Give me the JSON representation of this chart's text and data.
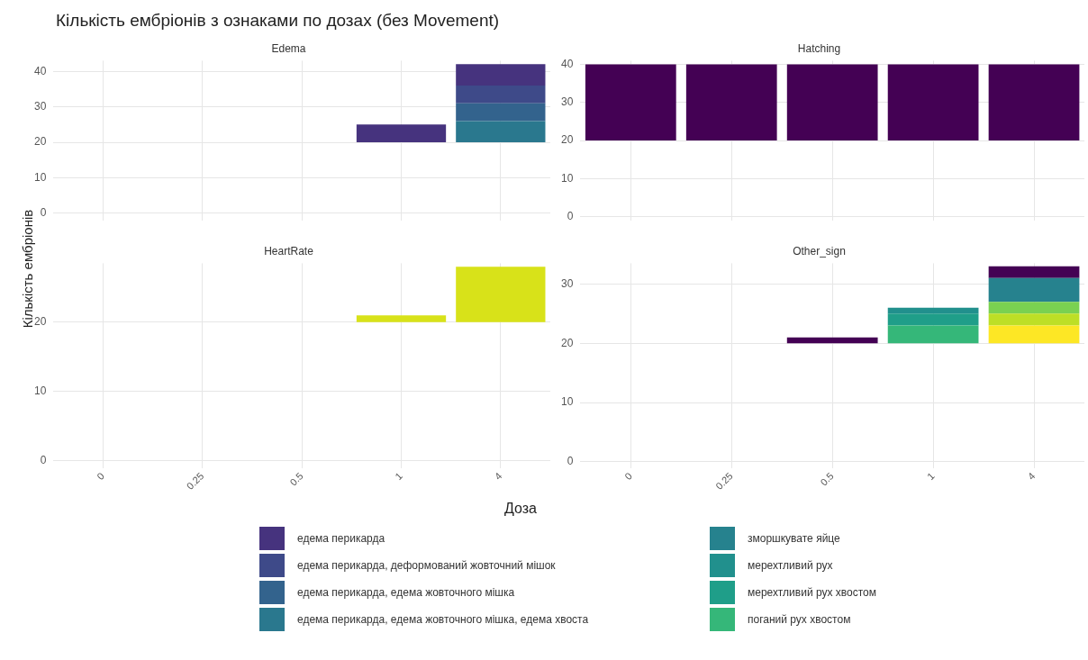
{
  "chart_data": [
    {
      "type": "bar",
      "title": "Кількість ембріонів з ознаками по дозах (без Movement)",
      "subtitle": "Edema",
      "ylabel": "Кількість ембріонів",
      "categories": [
        "0",
        "0.25",
        "0.5",
        "1",
        "4"
      ],
      "ylim": [
        -2,
        43
      ],
      "yticks": [
        0,
        10,
        20,
        30,
        40
      ],
      "grid": true,
      "tick_labels": "y",
      "legend": "bottom",
      "series": [
        {
          "name": "едема перикарда, едема жовточного мішка, едема хвоста",
          "color": "#2a788e",
          "values": [
            null,
            null,
            null,
            null,
            6
          ],
          "base": [
            null,
            null,
            null,
            null,
            20
          ]
        },
        {
          "name": "едема перикарда, едема жовточного мішка",
          "color": "#33638d",
          "values": [
            null,
            null,
            null,
            null,
            5
          ],
          "base": [
            null,
            null,
            null,
            null,
            26
          ]
        },
        {
          "name": "едема перикарда, деформований жовточний мішок",
          "color": "#3e4a89",
          "values": [
            null,
            null,
            null,
            null,
            5
          ],
          "base": [
            null,
            null,
            null,
            null,
            31
          ]
        },
        {
          "name": "едема перикарда",
          "color": "#46337e",
          "values": [
            null,
            null,
            null,
            5,
            6
          ],
          "base": [
            null,
            null,
            null,
            20,
            36
          ]
        }
      ]
    },
    {
      "type": "bar",
      "subtitle": "Hatching",
      "categories": [
        "0",
        "0.25",
        "0.5",
        "1",
        "4"
      ],
      "ylim": [
        -1,
        41
      ],
      "yticks": [
        0,
        10,
        20,
        30,
        40
      ],
      "grid": true,
      "tick_labels": "y",
      "series": [
        {
          "color": "#440154",
          "values": [
            20,
            20,
            20,
            20,
            20
          ],
          "base": [
            20,
            20,
            20,
            20,
            20
          ]
        }
      ]
    },
    {
      "type": "bar",
      "subtitle": "HeartRate",
      "xlabel": "Доза",
      "categories": [
        "0",
        "0.25",
        "0.5",
        "1",
        "4"
      ],
      "ylim": [
        -1,
        28.5
      ],
      "yticks": [
        0,
        10,
        20
      ],
      "grid": true,
      "series": [
        {
          "color": "#d8e219",
          "values": [
            null,
            null,
            null,
            1,
            8
          ],
          "base": [
            null,
            null,
            null,
            20,
            20
          ]
        }
      ]
    },
    {
      "type": "bar",
      "subtitle": "Other_sign",
      "categories": [
        "0",
        "0.25",
        "0.5",
        "1",
        "4"
      ],
      "ylim": [
        -1,
        33.5
      ],
      "yticks": [
        0,
        10,
        20,
        30
      ],
      "grid": true,
      "legend": "bottom",
      "series": [
        {
          "color": "#fde725",
          "values": [
            null,
            null,
            null,
            null,
            3
          ],
          "base": [
            null,
            null,
            null,
            null,
            20
          ]
        },
        {
          "color": "#bddf26",
          "values": [
            null,
            null,
            null,
            null,
            2
          ],
          "base": [
            null,
            null,
            null,
            null,
            23
          ]
        },
        {
          "color": "#7ad151",
          "values": [
            null,
            null,
            null,
            null,
            2
          ],
          "base": [
            null,
            null,
            null,
            null,
            25
          ]
        },
        {
          "name": "поганий рух хвостом",
          "color": "#35b779",
          "values": [
            null,
            null,
            null,
            3,
            null
          ],
          "base": [
            null,
            null,
            null,
            20,
            null
          ]
        },
        {
          "name": "мерехтливий рух хвостом",
          "color": "#1f9e89",
          "values": [
            null,
            null,
            null,
            2,
            null
          ],
          "base": [
            null,
            null,
            null,
            23,
            null
          ]
        },
        {
          "name": "мерехтливий рух",
          "color": "#21908d",
          "values": [
            null,
            null,
            null,
            1,
            null
          ],
          "base": [
            null,
            null,
            null,
            25,
            null
          ]
        },
        {
          "name": "зморшкувате яйце",
          "color": "#26828e",
          "values": [
            null,
            null,
            null,
            null,
            4
          ],
          "base": [
            null,
            null,
            null,
            null,
            27
          ]
        },
        {
          "color": "#440154",
          "values": [
            null,
            null,
            1,
            null,
            2
          ],
          "base": [
            null,
            null,
            20,
            null,
            31
          ]
        }
      ]
    }
  ]
}
